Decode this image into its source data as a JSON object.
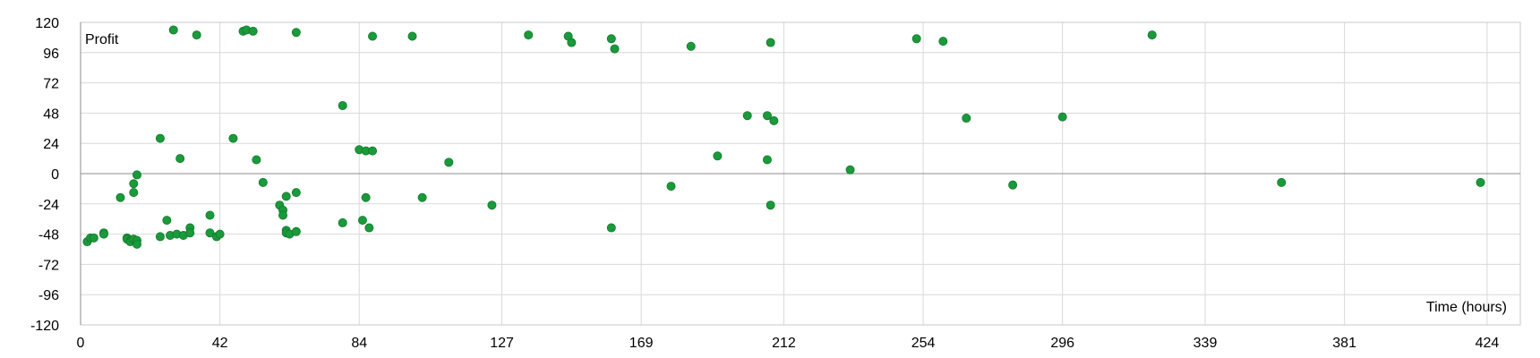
{
  "chart_data": {
    "type": "scatter",
    "title": "",
    "xlabel": "Time (hours)",
    "ylabel": "Profit",
    "xlim": [
      0,
      434
    ],
    "ylim": [
      -120,
      120
    ],
    "x_ticks": [
      "0",
      "42",
      "84",
      "127",
      "169",
      "212",
      "254",
      "296",
      "339",
      "381",
      "424"
    ],
    "y_ticks": [
      "120",
      "96",
      "72",
      "48",
      "24",
      "0",
      "-24",
      "-48",
      "-72",
      "-96",
      "-120"
    ],
    "grid": true,
    "legend": "none",
    "marker_color": "#1a9a3a",
    "series": [
      {
        "x": [
          2,
          3,
          4,
          7,
          7,
          12,
          14,
          14,
          15,
          15,
          16,
          16,
          16,
          16,
          17,
          17,
          17,
          24,
          24,
          26,
          27,
          28,
          29,
          30,
          31,
          33,
          33,
          35,
          39,
          39,
          41,
          42,
          46,
          49,
          50,
          52,
          53,
          55,
          60,
          61,
          61,
          62,
          62,
          62,
          63,
          65,
          65,
          65,
          79,
          79,
          84,
          85,
          86,
          86,
          87,
          88,
          88,
          100,
          103,
          111,
          124,
          135,
          147,
          148,
          160,
          160,
          161,
          178,
          184,
          192,
          201,
          207,
          207,
          208,
          208,
          209,
          232,
          252,
          260,
          267,
          281,
          296,
          323,
          362,
          422
        ],
        "y": [
          -54,
          -51,
          -51,
          -47,
          -48,
          -19,
          -51,
          -52,
          -53,
          -54,
          -52,
          -52,
          -15,
          -8,
          -1,
          -53,
          -56,
          28,
          -50,
          -37,
          -49,
          114,
          -48,
          12,
          -49,
          -43,
          -47,
          110,
          -33,
          -47,
          -50,
          -48,
          28,
          113,
          114,
          113,
          11,
          -7,
          -25,
          -29,
          -33,
          -45,
          -47,
          -18,
          -48,
          -15,
          -46,
          112,
          -39,
          54,
          19,
          -37,
          -19,
          18,
          -43,
          18,
          109,
          109,
          -19,
          9,
          -25,
          110,
          109,
          104,
          107,
          -43,
          99,
          -10,
          101,
          14,
          46,
          46,
          11,
          104,
          -25,
          42,
          3,
          107,
          105,
          44,
          -9,
          45,
          110,
          -7,
          -7
        ]
      }
    ]
  }
}
